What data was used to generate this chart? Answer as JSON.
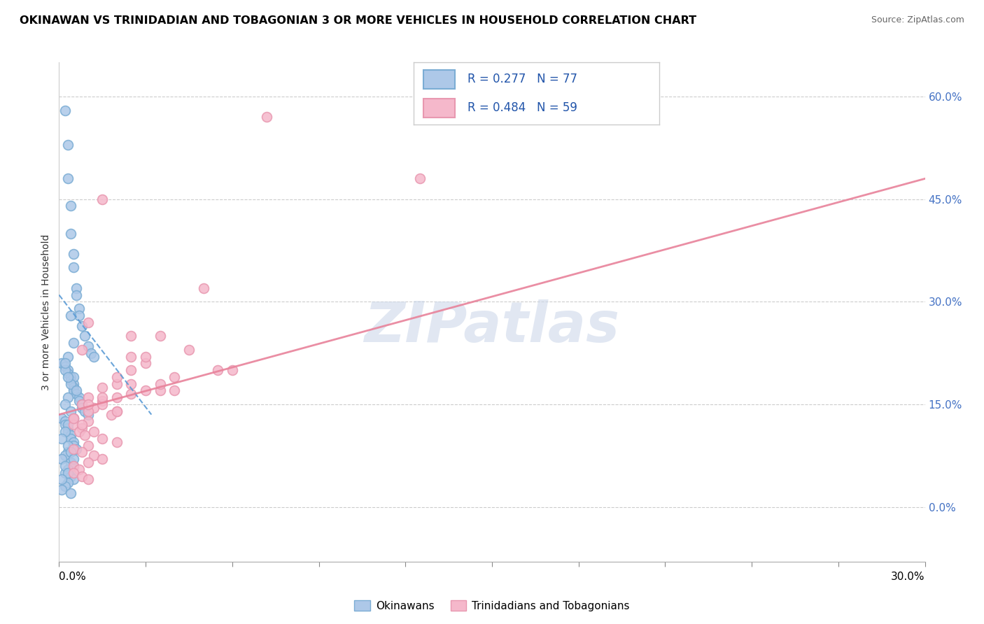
{
  "title": "OKINAWAN VS TRINIDADIAN AND TOBAGONIAN 3 OR MORE VEHICLES IN HOUSEHOLD CORRELATION CHART",
  "source": "Source: ZipAtlas.com",
  "ylabel": "3 or more Vehicles in Household",
  "ytick_values": [
    0.0,
    15.0,
    30.0,
    45.0,
    60.0
  ],
  "xlim": [
    0.0,
    30.0
  ],
  "ylim": [
    -8.0,
    65.0
  ],
  "legend_r1": "R = 0.277",
  "legend_n1": "N = 77",
  "legend_r2": "R = 0.484",
  "legend_n2": "N = 59",
  "color_okinawan_face": "#adc8e8",
  "color_okinawan_edge": "#7badd4",
  "color_trinidadian_face": "#f5b8cb",
  "color_trinidadian_edge": "#e898b0",
  "color_okinawan_line": "#5b9bd5",
  "color_trinidadian_line": "#e8829a",
  "watermark": "ZIPatlas",
  "watermark_color": "#cdd8ea",
  "ok_x": [
    0.2,
    0.3,
    0.3,
    0.4,
    0.4,
    0.5,
    0.5,
    0.6,
    0.6,
    0.7,
    0.7,
    0.8,
    0.9,
    1.0,
    1.1,
    1.2,
    0.1,
    0.2,
    0.3,
    0.3,
    0.4,
    0.4,
    0.5,
    0.5,
    0.5,
    0.6,
    0.7,
    0.7,
    0.8,
    0.8,
    0.9,
    1.0,
    0.1,
    0.2,
    0.2,
    0.3,
    0.3,
    0.4,
    0.4,
    0.5,
    0.5,
    0.6,
    0.3,
    0.2,
    0.1,
    0.4,
    0.5,
    0.3,
    0.2,
    0.4,
    0.5,
    0.3,
    0.2,
    0.1,
    0.4,
    0.3,
    0.2,
    0.5,
    0.4,
    0.6,
    0.3,
    0.2,
    0.4,
    0.5,
    0.3,
    0.2,
    0.1,
    0.3,
    0.4,
    0.5,
    0.2,
    0.3,
    0.1,
    0.4,
    0.5,
    0.2,
    0.3
  ],
  "ok_y": [
    58.0,
    53.0,
    48.0,
    44.0,
    40.0,
    37.0,
    35.0,
    32.0,
    31.0,
    29.0,
    28.0,
    26.5,
    25.0,
    23.5,
    22.5,
    22.0,
    21.0,
    20.5,
    20.0,
    19.5,
    19.0,
    18.5,
    18.0,
    17.5,
    17.0,
    16.5,
    16.0,
    15.5,
    15.0,
    14.5,
    14.0,
    13.5,
    13.0,
    12.5,
    12.0,
    11.5,
    11.0,
    10.5,
    10.0,
    9.5,
    9.0,
    8.5,
    8.0,
    7.5,
    7.0,
    6.5,
    6.0,
    5.5,
    5.0,
    4.5,
    4.0,
    3.5,
    3.0,
    2.5,
    2.0,
    22.0,
    20.0,
    19.0,
    18.0,
    17.0,
    16.0,
    15.0,
    14.0,
    13.0,
    12.0,
    11.0,
    10.0,
    9.0,
    8.0,
    7.0,
    6.0,
    5.0,
    4.0,
    28.0,
    24.0,
    21.0,
    19.0
  ],
  "tri_x": [
    7.2,
    12.5,
    5.0,
    3.5,
    4.5,
    2.5,
    3.0,
    5.5,
    4.0,
    2.0,
    1.5,
    3.5,
    2.5,
    1.0,
    1.5,
    0.8,
    1.2,
    2.0,
    1.8,
    0.5,
    1.0,
    0.5,
    0.8,
    0.7,
    0.9,
    1.5,
    2.0,
    1.0,
    0.5,
    0.8,
    1.2,
    1.5,
    1.0,
    0.5,
    0.7,
    0.5,
    0.8,
    1.0,
    2.5,
    3.0,
    2.5,
    6.0,
    3.5,
    4.0,
    2.0,
    1.5,
    1.0,
    2.0,
    2.5,
    3.0,
    1.5,
    1.0,
    2.0,
    0.5,
    0.8,
    1.2,
    1.5,
    1.0,
    0.8
  ],
  "tri_y": [
    57.0,
    48.0,
    32.0,
    25.0,
    23.0,
    22.0,
    21.0,
    20.0,
    19.0,
    18.0,
    17.5,
    17.0,
    16.5,
    16.0,
    15.5,
    15.0,
    14.5,
    14.0,
    13.5,
    13.0,
    12.5,
    12.0,
    11.5,
    11.0,
    10.5,
    10.0,
    9.5,
    9.0,
    8.5,
    8.0,
    7.5,
    7.0,
    6.5,
    6.0,
    5.5,
    5.0,
    4.5,
    4.0,
    25.0,
    22.0,
    20.0,
    20.0,
    18.0,
    17.0,
    16.0,
    15.0,
    14.0,
    19.0,
    18.0,
    17.0,
    16.0,
    15.0,
    14.0,
    13.0,
    12.0,
    11.0,
    45.0,
    27.0,
    23.0
  ],
  "ok_trend_x0": 0.0,
  "ok_trend_x1": 3.2,
  "ok_trend_y0": 31.0,
  "ok_trend_y1": 13.5,
  "tri_trend_x0": 0.0,
  "tri_trend_x1": 30.0,
  "tri_trend_y0": 13.5,
  "tri_trend_y1": 48.0
}
